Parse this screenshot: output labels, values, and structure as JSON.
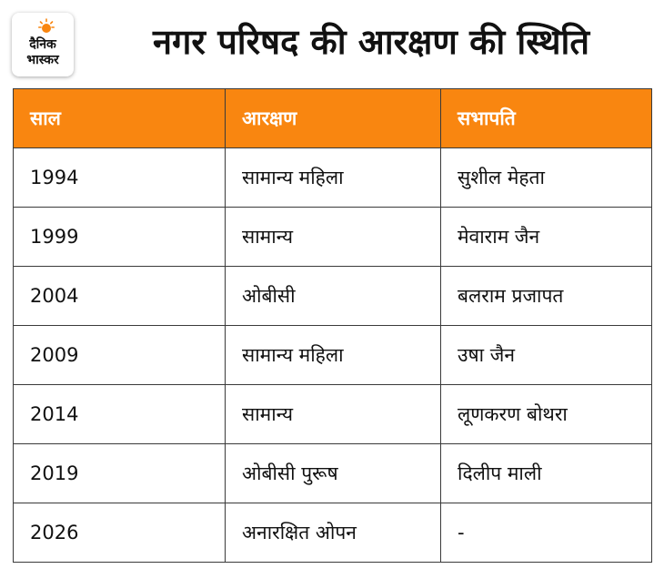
{
  "logo": {
    "line1": "दैनिक",
    "line2": "भास्कर",
    "accent_color": "#f98610",
    "icon": "sun-icon"
  },
  "title": "नगर परिषद की आरक्षण की स्थिति",
  "table": {
    "header_color": "#f98610",
    "headers": [
      "साल",
      "आरक्षण",
      "सभापति"
    ],
    "rows": [
      [
        "1994",
        "सामान्य महिला",
        "सुशील मेहता"
      ],
      [
        "1999",
        "सामान्य",
        "मेवाराम जैन"
      ],
      [
        "2004",
        "ओबीसी",
        "बलराम प्रजापत"
      ],
      [
        "2009",
        "सामान्य महिला",
        "उषा जैन"
      ],
      [
        "2014",
        "सामान्य",
        "लूणकरण बोथरा"
      ],
      [
        "2019",
        "ओबीसी पुरूष",
        "दिलीप माली"
      ],
      [
        "2026",
        "अनारक्षित ओपन",
        "-"
      ]
    ]
  }
}
